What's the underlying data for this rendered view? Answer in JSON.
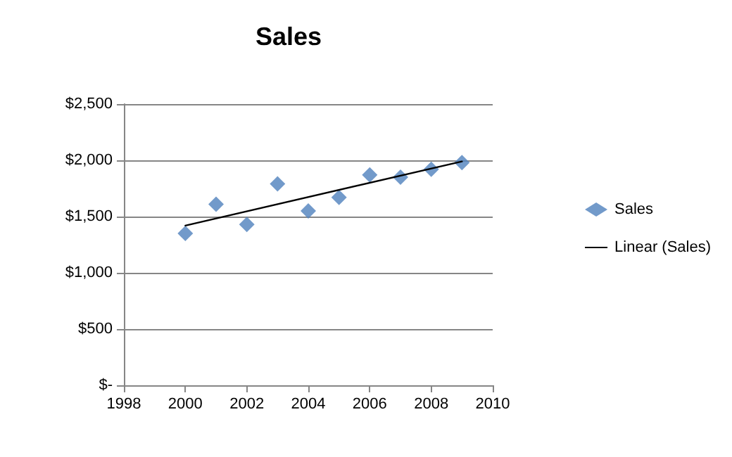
{
  "chart_data": {
    "type": "scatter",
    "title": "Sales",
    "x": [
      2000,
      2001,
      2002,
      2003,
      2004,
      2005,
      2006,
      2007,
      2008,
      2009
    ],
    "series": [
      {
        "name": "Sales",
        "color": "#4f81bd",
        "marker": "diamond",
        "values": [
          1350,
          1610,
          1430,
          1790,
          1550,
          1670,
          1870,
          1850,
          1920,
          1980
        ]
      },
      {
        "name": "Linear (Sales)",
        "type": "line",
        "color": "#000000",
        "marker": "none",
        "x": [
          2000,
          2009
        ],
        "values": [
          1420,
          1990
        ]
      }
    ],
    "xlim": [
      1998,
      2010
    ],
    "xticks": [
      1998,
      2000,
      2002,
      2004,
      2006,
      2008,
      2010
    ],
    "ylim": [
      0,
      2500
    ],
    "yticks": [
      {
        "value": 0,
        "label": "$-"
      },
      {
        "value": 500,
        "label": "$500"
      },
      {
        "value": 1000,
        "label": "$1,000"
      },
      {
        "value": 1500,
        "label": "$1,500"
      },
      {
        "value": 2000,
        "label": "$2,000"
      },
      {
        "value": 2500,
        "label": "$2,500"
      }
    ],
    "grid": "y",
    "legend": "right"
  }
}
